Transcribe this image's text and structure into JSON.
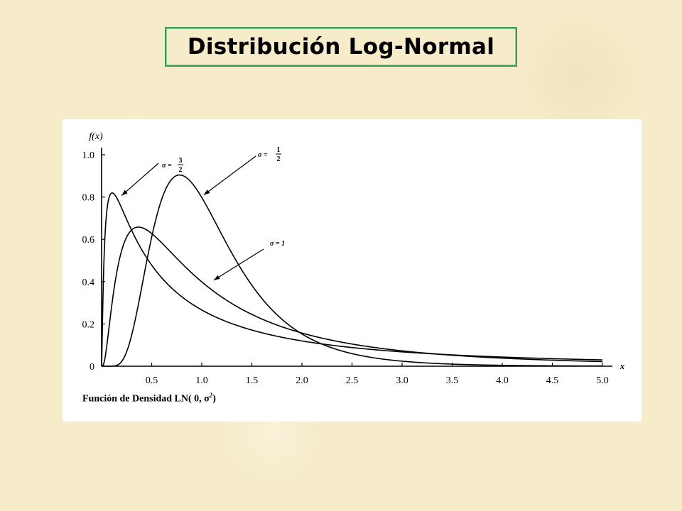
{
  "page": {
    "title": "Distribución  Log-Normal"
  },
  "chart_data": {
    "type": "line",
    "ylabel": "f(x)",
    "xlabel": "x",
    "xlim": [
      0,
      5.0
    ],
    "ylim": [
      0,
      1.0
    ],
    "xticks": [
      "0.5",
      "1.0",
      "1.5",
      "2.0",
      "2.5",
      "3.0",
      "3.5",
      "4.0",
      "4.5",
      "5.0"
    ],
    "yticks": [
      "0",
      "0.2",
      "0.4",
      "0.6",
      "0.8",
      "1.0"
    ],
    "caption": {
      "prefix": "Función de Densidad LN( 0, ",
      "sigma": "σ",
      "exp": "2",
      "suffix": ")"
    },
    "series": [
      {
        "name": "σ = 3/2",
        "sigma": 1.5,
        "label_num": "3",
        "label_den": "2",
        "peak": [
          0.105,
          0.82
        ]
      },
      {
        "name": "σ = 1/2",
        "sigma": 0.5,
        "label_num": "1",
        "label_den": "2",
        "peak": [
          0.78,
          0.9
        ]
      },
      {
        "name": "σ = 1",
        "sigma": 1.0,
        "label": "σ = 1",
        "peak": [
          0.37,
          0.66
        ]
      }
    ]
  }
}
